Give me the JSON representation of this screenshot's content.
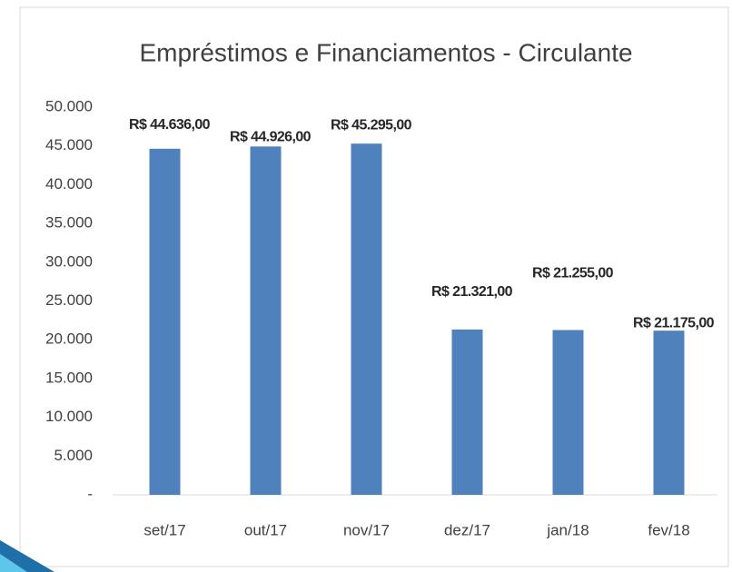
{
  "chart_data": {
    "type": "bar",
    "title": "Empréstimos e Financiamentos - Circulante",
    "categories": [
      "set/17",
      "out/17",
      "nov/17",
      "dez/17",
      "jan/18",
      "fev/18"
    ],
    "values": [
      44636,
      44926,
      45295,
      21321,
      21255,
      21175
    ],
    "value_labels": [
      "R$ 44.636,00",
      "R$ 44.926,00",
      "R$ 45.295,00",
      "R$ 21.321,00",
      "R$ 21.255,00",
      "R$ 21.175,00"
    ],
    "color": "#4f81bd",
    "ylim": [
      0,
      50000
    ],
    "yticks": [
      {
        "value": 0,
        "label": "-"
      },
      {
        "value": 5000,
        "label": "5.000"
      },
      {
        "value": 10000,
        "label": "10.000"
      },
      {
        "value": 15000,
        "label": "15.000"
      },
      {
        "value": 20000,
        "label": "20.000"
      },
      {
        "value": 25000,
        "label": "25.000"
      },
      {
        "value": 30000,
        "label": "30.000"
      },
      {
        "value": 35000,
        "label": "35.000"
      },
      {
        "value": 40000,
        "label": "40.000"
      },
      {
        "value": 45000,
        "label": "45.000"
      },
      {
        "value": 50000,
        "label": "50.000"
      }
    ],
    "grid": false
  }
}
